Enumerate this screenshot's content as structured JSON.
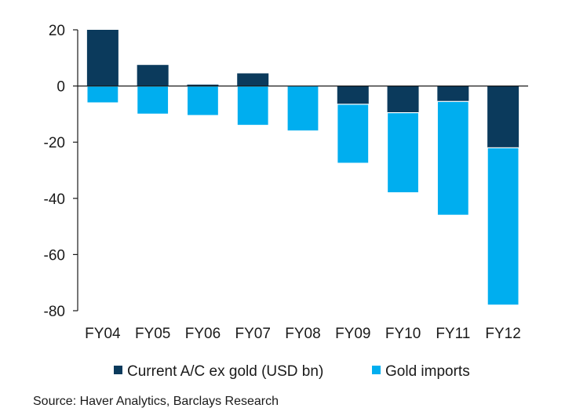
{
  "chart_data": {
    "type": "bar",
    "stacked": true,
    "categories": [
      "FY04",
      "FY05",
      "FY06",
      "FY07",
      "FY08",
      "FY09",
      "FY10",
      "FY11",
      "FY12"
    ],
    "series": [
      {
        "name": "Current A/C ex gold (USD bn)",
        "color": "#0b3a5c",
        "values": [
          20,
          7.5,
          0.5,
          4.5,
          0,
          -6.5,
          -9.5,
          -5.5,
          -22
        ]
      },
      {
        "name": "Gold imports",
        "color": "#00aeef",
        "values": [
          -6,
          -10,
          -10.5,
          -14,
          -16,
          -21,
          -28.5,
          -40.5,
          -56
        ]
      }
    ],
    "yticks": [
      20,
      0,
      -20,
      -40,
      -60,
      -80
    ],
    "ylim": [
      -80,
      20
    ],
    "grid": false,
    "legend_position": "bottom",
    "source": "Source: Haver Analytics, Barclays Research"
  }
}
